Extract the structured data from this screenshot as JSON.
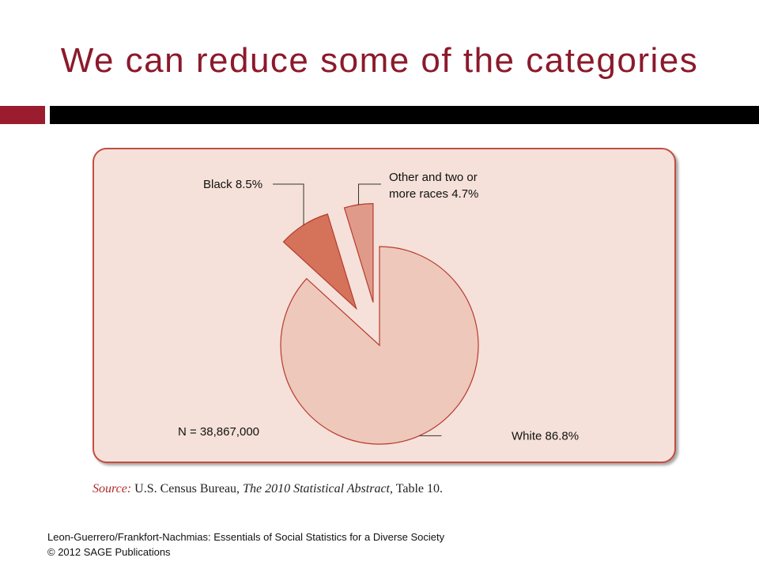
{
  "slide": {
    "title": "We can reduce some of the categories",
    "footer_line1": "Leon-Guerrero/Frankfort-Nachmias: Essentials of Social Statistics for a Diverse Society",
    "footer_line2": "© 2012 SAGE Publications"
  },
  "source": {
    "label": "Source:",
    "text1": "U.S. Census Bureau,",
    "italic": "The 2010 Statistical Abstract",
    "text2": ", Table 10."
  },
  "colors": {
    "title": "#8b1a2b",
    "panel_bg": "#f5e1d9",
    "panel_border": "#c54c40",
    "outline": "#b83a2e",
    "slice_white": "#edc8bb",
    "slice_black": "#d4735a",
    "slice_other": "#e09a8a"
  },
  "chart_data": {
    "type": "pie",
    "n_label": "N = 38,867,000",
    "slices": [
      {
        "label": "White 86.8%",
        "value": 86.8,
        "color": "#edc8bb",
        "exploded": false
      },
      {
        "label": "Black 8.5%",
        "value": 8.5,
        "color": "#d4735a",
        "exploded": true
      },
      {
        "label": "Other and two or more races 4.7%",
        "label_lines": [
          "Other and two or",
          "more races 4.7%"
        ],
        "value": 4.7,
        "color": "#e09a8a",
        "exploded": true
      }
    ]
  }
}
